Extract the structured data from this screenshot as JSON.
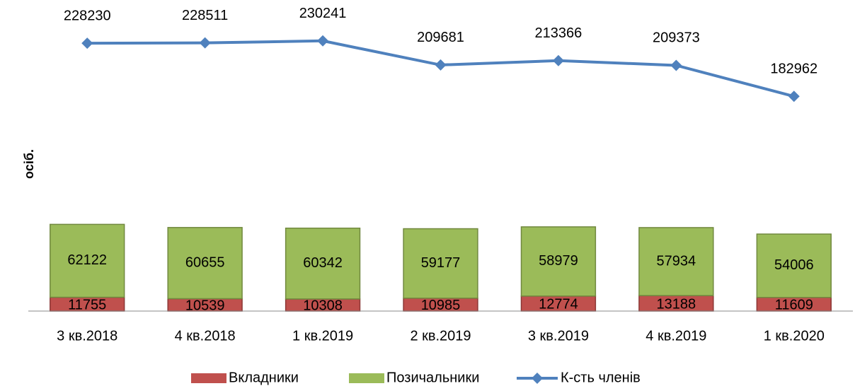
{
  "chart_data": {
    "type": "bar",
    "y_axis_label": "осіб.",
    "categories": [
      "3 кв.2018",
      "4 кв.2018",
      "1 кв.2019",
      "2 кв.2019",
      "3 кв.2019",
      "4 кв.2019",
      "1 кв.2020"
    ],
    "series": [
      {
        "name": "Вкладники",
        "type": "bar",
        "color": "#c0504d",
        "values": [
          11755,
          10539,
          10308,
          10985,
          12774,
          13188,
          11609
        ]
      },
      {
        "name": "Позичальники",
        "type": "bar",
        "color": "#9bbb59",
        "values": [
          62122,
          60655,
          60342,
          59177,
          58979,
          57934,
          54006
        ]
      },
      {
        "name": "К-сть членів",
        "type": "line",
        "color": "#4f81bd",
        "values": [
          228230,
          228511,
          230241,
          209681,
          213366,
          209373,
          182962
        ]
      }
    ],
    "ylim": [
      0,
      250000
    ],
    "legend": "bottom"
  }
}
